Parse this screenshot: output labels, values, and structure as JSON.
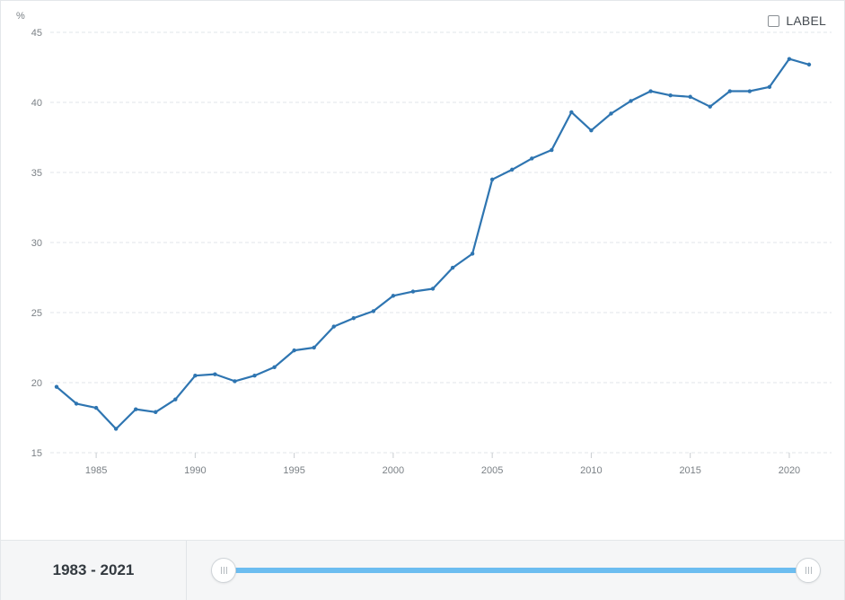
{
  "chart_data": {
    "type": "line",
    "unit_label": "%",
    "y_ticks": [
      15,
      20,
      25,
      30,
      35,
      40,
      45
    ],
    "ylim": [
      15,
      45
    ],
    "x_ticks": [
      1985,
      1990,
      1995,
      2000,
      2005,
      2010,
      2015,
      2020
    ],
    "xlim": [
      1983,
      2021
    ],
    "grid": true,
    "series_color": "#2e75b1",
    "x": [
      1983,
      1984,
      1985,
      1986,
      1987,
      1988,
      1989,
      1990,
      1991,
      1992,
      1993,
      1994,
      1995,
      1996,
      1997,
      1998,
      1999,
      2000,
      2001,
      2002,
      2003,
      2004,
      2005,
      2006,
      2007,
      2008,
      2009,
      2010,
      2011,
      2012,
      2013,
      2014,
      2015,
      2016,
      2017,
      2018,
      2019,
      2020,
      2021
    ],
    "values": [
      19.7,
      18.5,
      18.2,
      16.7,
      18.1,
      17.9,
      18.8,
      20.5,
      20.6,
      20.1,
      20.5,
      21.1,
      22.3,
      22.5,
      24.0,
      24.6,
      25.1,
      26.2,
      26.5,
      26.7,
      28.2,
      29.2,
      34.5,
      35.2,
      36.0,
      36.6,
      39.3,
      38.0,
      39.2,
      40.1,
      40.8,
      40.5,
      40.4,
      39.7,
      40.8,
      40.8,
      41.1,
      43.1,
      42.7
    ]
  },
  "label_toggle": {
    "text": "LABEL",
    "checked": false
  },
  "range": {
    "text": "1983 - 2021",
    "start": 1983,
    "end": 2021
  },
  "colors": {
    "line": "#2e75b1",
    "slider_fill": "#6cbdf0",
    "grid": "#e2e5e8",
    "axis_text": "#7b8186"
  }
}
